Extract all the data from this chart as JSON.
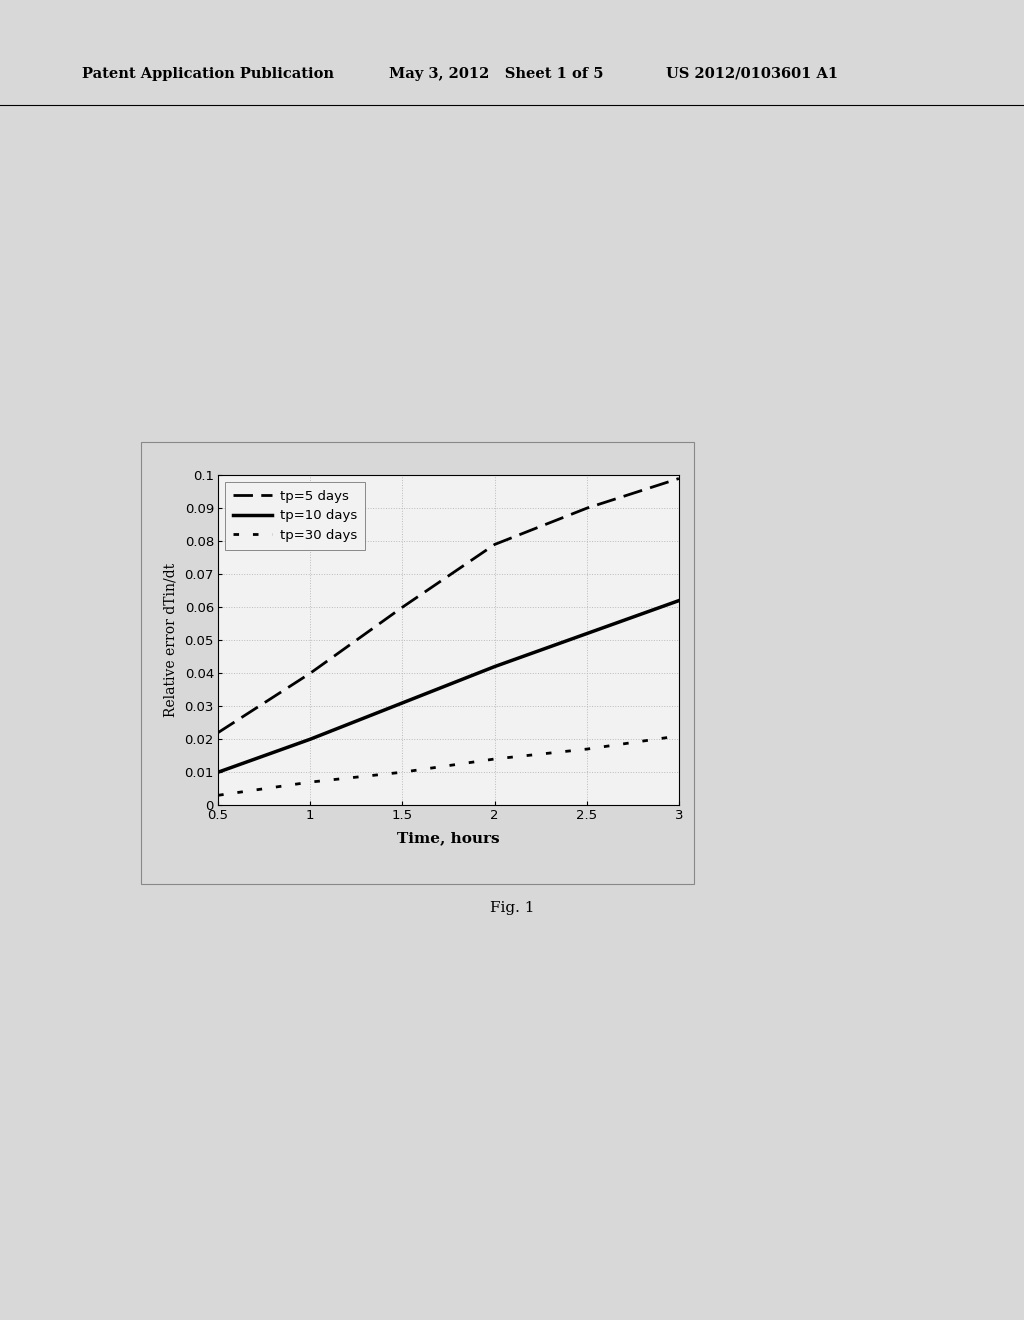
{
  "title": "",
  "xlabel": "Time, hours",
  "ylabel": "Relative error dTin/dt",
  "xlim": [
    0.5,
    3.0
  ],
  "ylim": [
    0,
    0.1
  ],
  "xticks": [
    0.5,
    1.0,
    1.5,
    2.0,
    2.5,
    3.0
  ],
  "yticks": [
    0,
    0.01,
    0.02,
    0.03,
    0.04,
    0.05,
    0.06,
    0.07,
    0.08,
    0.09,
    0.1
  ],
  "series": [
    {
      "label": "tp=5 days",
      "x": [
        0.5,
        1.0,
        1.5,
        2.0,
        2.5,
        3.0
      ],
      "y": [
        0.022,
        0.04,
        0.06,
        0.079,
        0.09,
        0.099
      ],
      "linestyle": "--",
      "linewidth": 2.0,
      "color": "#000000",
      "dashes": [
        7,
        3
      ]
    },
    {
      "label": "tp=10 days",
      "x": [
        0.5,
        1.0,
        1.5,
        2.0,
        2.5,
        3.0
      ],
      "y": [
        0.01,
        0.02,
        0.031,
        0.042,
        0.052,
        0.062
      ],
      "linestyle": "-",
      "linewidth": 2.5,
      "color": "#000000",
      "dashes": []
    },
    {
      "label": "tp=30 days",
      "x": [
        0.5,
        1.0,
        1.5,
        2.0,
        2.5,
        3.0
      ],
      "y": [
        0.003,
        0.007,
        0.01,
        0.014,
        0.017,
        0.021
      ],
      "linestyle": ":",
      "linewidth": 2.0,
      "color": "#000000",
      "dashes": [
        2,
        5
      ]
    }
  ],
  "legend_loc": "upper left",
  "grid_major_color": "#bbbbbb",
  "grid_minor_color": "#dddddd",
  "background_color": "#ffffff",
  "header_left": "Patent Application Publication",
  "header_mid": "May 3, 2012   Sheet 1 of 5",
  "header_right": "US 2012/0103601 A1",
  "footer": "Fig. 1",
  "figure_bg": "#e8e8e8",
  "plot_area_bg": "#f0f0f0"
}
